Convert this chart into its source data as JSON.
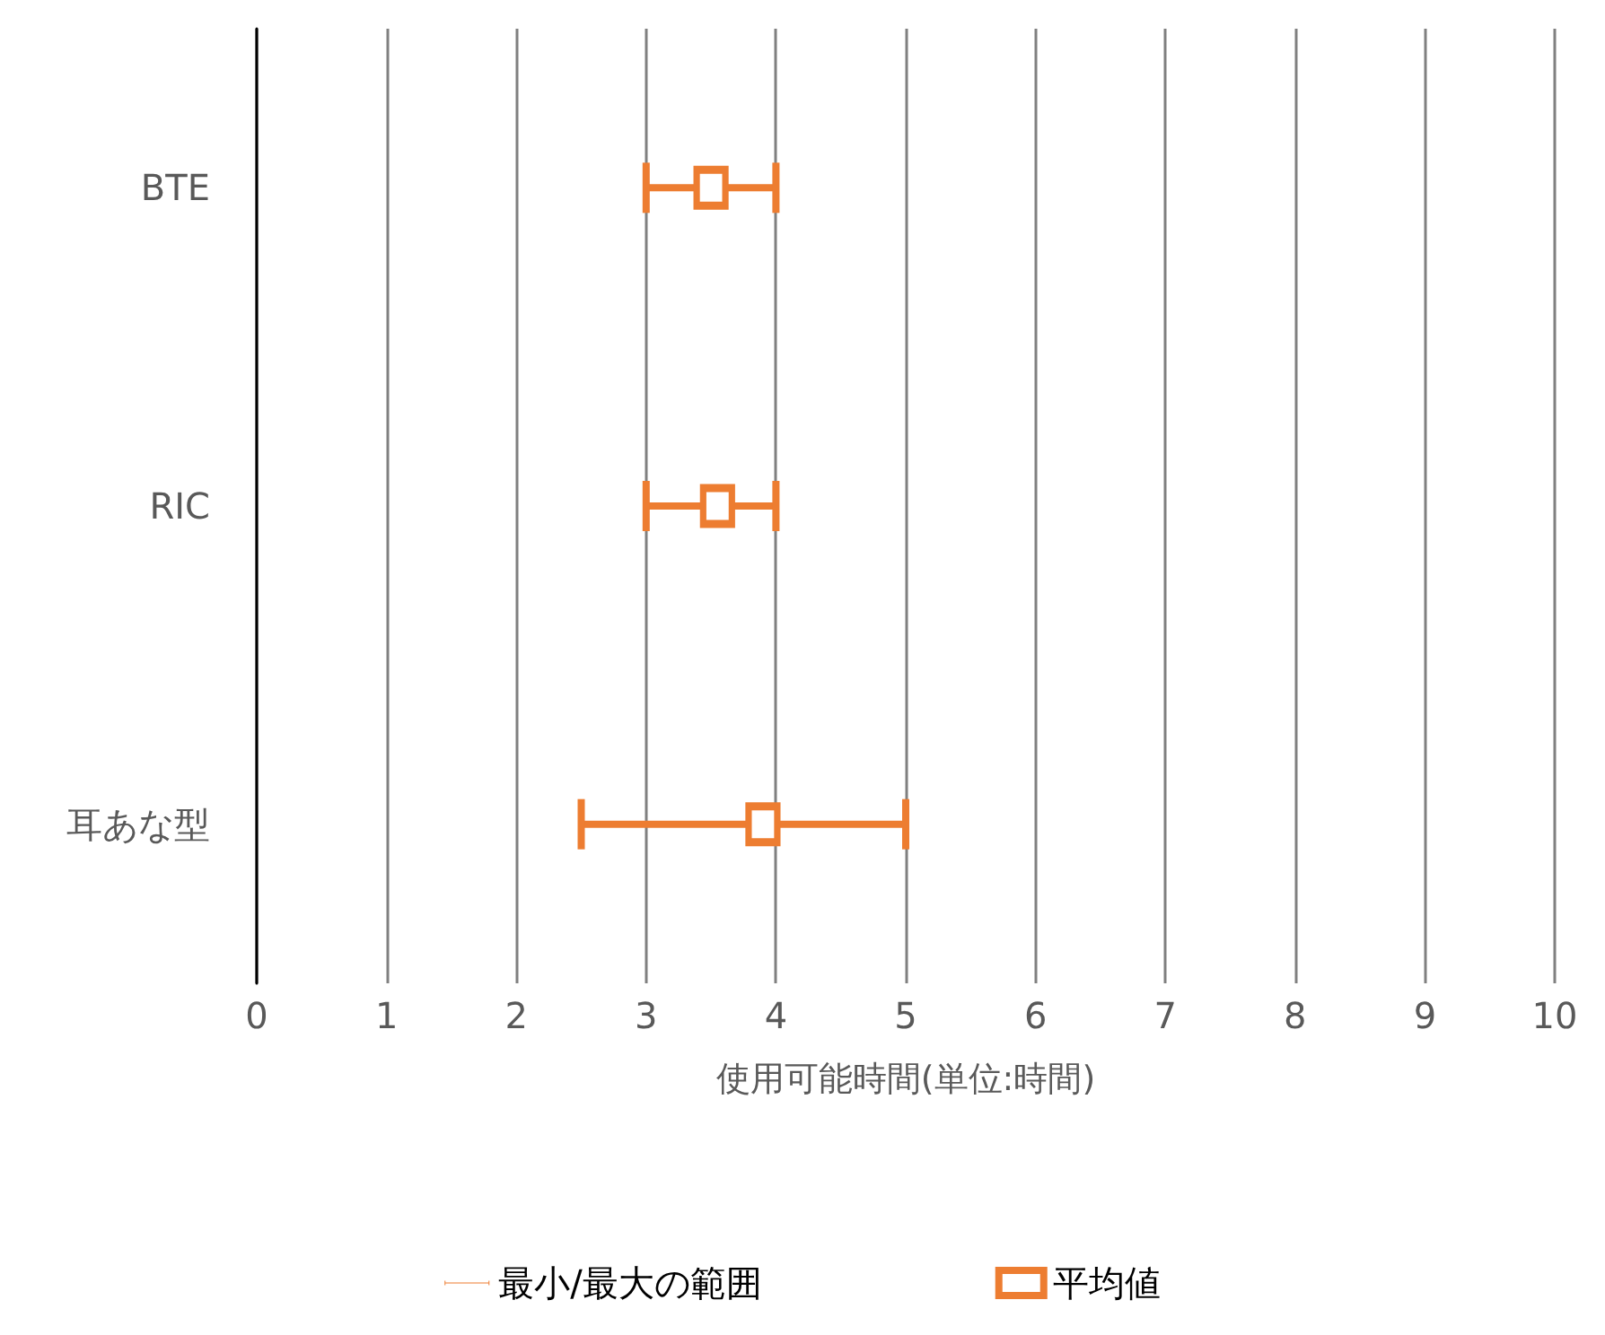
{
  "chart_data": {
    "type": "scatter",
    "orientation": "horizontal",
    "categories": [
      "BTE",
      "RIC",
      "耳あな型"
    ],
    "series": [
      {
        "name": "平均値",
        "color": "#ed7d31",
        "values": [
          3.5,
          3.55,
          3.9
        ],
        "errors": [
          [
            3,
            4
          ],
          [
            3,
            4
          ],
          [
            2.5,
            5
          ]
        ]
      }
    ],
    "xlabel": "使用可能時間(単位:時間)",
    "xlim": [
      0,
      10
    ],
    "xticks": [
      0,
      1,
      2,
      3,
      4,
      5,
      6,
      7,
      8,
      9,
      10
    ],
    "grid": "x",
    "legend": "bottom",
    "marker": "square",
    "annotations": [
      "最小/最大の範囲"
    ]
  }
}
